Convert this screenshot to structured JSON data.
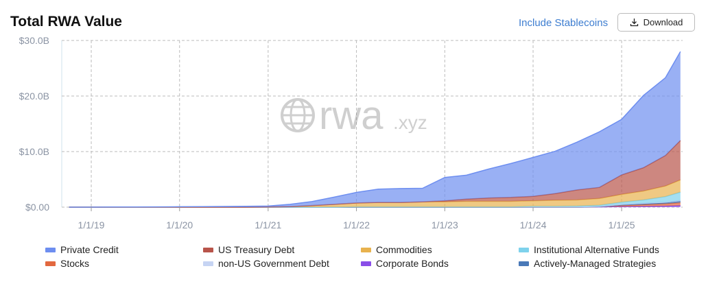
{
  "header": {
    "title": "Total RWA Value",
    "link": "Include Stablecoins",
    "button": "Download"
  },
  "watermark": {
    "main": "rwa",
    "suffix": ".xyz"
  },
  "chart_data": {
    "type": "stacked-area",
    "x": [
      "2018-10-01",
      "2019-01-01",
      "2019-04-01",
      "2019-07-01",
      "2019-10-01",
      "2020-01-01",
      "2020-04-01",
      "2020-07-01",
      "2020-10-01",
      "2021-01-01",
      "2021-04-01",
      "2021-07-01",
      "2021-10-01",
      "2022-01-01",
      "2022-04-01",
      "2022-07-01",
      "2022-10-01",
      "2023-01-01",
      "2023-04-01",
      "2023-07-01",
      "2023-10-01",
      "2024-01-01",
      "2024-04-01",
      "2024-07-01",
      "2024-10-01",
      "2025-01-01",
      "2025-04-01",
      "2025-07-01",
      "2025-09-01"
    ],
    "series": [
      {
        "name": "Private Credit",
        "color": "#6d8ef0",
        "values": [
          0,
          0,
          0.02,
          0.03,
          0.05,
          0.08,
          0.1,
          0.12,
          0.15,
          0.15,
          0.4,
          0.7,
          1.3,
          1.9,
          2.4,
          2.5,
          2.45,
          4.2,
          4.3,
          5.2,
          6.1,
          7.0,
          7.6,
          8.6,
          10.0,
          10.0,
          13.0,
          14.0,
          16.0
        ]
      },
      {
        "name": "US Treasury Debt",
        "color": "#b8544a",
        "values": [
          0,
          0,
          0,
          0,
          0,
          0,
          0,
          0,
          0,
          0,
          0,
          0,
          0,
          0,
          0,
          0,
          0,
          0.2,
          0.4,
          0.6,
          0.7,
          0.8,
          1.2,
          1.8,
          2.0,
          3.5,
          4.2,
          5.5,
          7.1
        ]
      },
      {
        "name": "Commodities",
        "color": "#e8b24e",
        "values": [
          0,
          0,
          0,
          0,
          0,
          0,
          0,
          0,
          0,
          0.05,
          0.1,
          0.3,
          0.5,
          0.7,
          0.8,
          0.8,
          0.9,
          0.9,
          1.0,
          1.0,
          1.0,
          1.0,
          1.1,
          1.1,
          1.2,
          1.4,
          1.6,
          1.9,
          2.2
        ]
      },
      {
        "name": "Institutional Alternative Funds",
        "color": "#7ed2ec",
        "values": [
          0,
          0,
          0,
          0,
          0,
          0,
          0,
          0,
          0,
          0,
          0,
          0,
          0,
          0,
          0,
          0,
          0,
          0,
          0,
          0,
          0,
          0.1,
          0.1,
          0.15,
          0.2,
          0.4,
          0.6,
          1.0,
          1.5
        ]
      },
      {
        "name": "Stocks",
        "color": "#e2683f",
        "values": [
          0,
          0,
          0,
          0,
          0,
          0,
          0,
          0,
          0,
          0,
          0,
          0,
          0,
          0,
          0,
          0,
          0,
          0,
          0,
          0,
          0,
          0,
          0,
          0,
          0.05,
          0.2,
          0.3,
          0.4,
          0.5
        ]
      },
      {
        "name": "non-US Government Debt",
        "color": "#c6d4f3",
        "values": [
          0,
          0,
          0,
          0,
          0,
          0,
          0,
          0,
          0,
          0,
          0,
          0,
          0,
          0.05,
          0.05,
          0.05,
          0.05,
          0.05,
          0.05,
          0.05,
          0.05,
          0.05,
          0.05,
          0.05,
          0.05,
          0.1,
          0.1,
          0.1,
          0.1
        ]
      },
      {
        "name": "Corporate Bonds",
        "color": "#8a4ee8",
        "values": [
          0,
          0,
          0,
          0,
          0,
          0,
          0,
          0,
          0,
          0,
          0,
          0,
          0,
          0,
          0,
          0,
          0,
          0,
          0,
          0,
          0,
          0,
          0,
          0,
          0.05,
          0.1,
          0.15,
          0.2,
          0.3
        ]
      },
      {
        "name": "Actively-Managed Strategies",
        "color": "#4a79b8",
        "values": [
          0,
          0,
          0,
          0,
          0,
          0,
          0,
          0,
          0,
          0,
          0,
          0,
          0,
          0,
          0,
          0,
          0,
          0,
          0,
          0,
          0,
          0,
          0,
          0,
          0,
          0.1,
          0.15,
          0.2,
          0.3
        ]
      }
    ],
    "xlim": [
      "2018-09-01",
      "2025-09-10"
    ],
    "xticks": [
      {
        "value": "2019-01-01",
        "label": "1/1/19"
      },
      {
        "value": "2020-01-01",
        "label": "1/1/20"
      },
      {
        "value": "2021-01-01",
        "label": "1/1/21"
      },
      {
        "value": "2022-01-01",
        "label": "1/1/22"
      },
      {
        "value": "2023-01-01",
        "label": "1/1/23"
      },
      {
        "value": "2024-01-01",
        "label": "1/1/24"
      },
      {
        "value": "2025-01-01",
        "label": "1/1/25"
      }
    ],
    "ylim": [
      0,
      30
    ],
    "yticks": [
      {
        "value": 0,
        "label": "$0.00"
      },
      {
        "value": 10,
        "label": "$10.0B"
      },
      {
        "value": 20,
        "label": "$20.0B"
      },
      {
        "value": 30,
        "label": "$30.0B"
      }
    ],
    "grid": true
  }
}
